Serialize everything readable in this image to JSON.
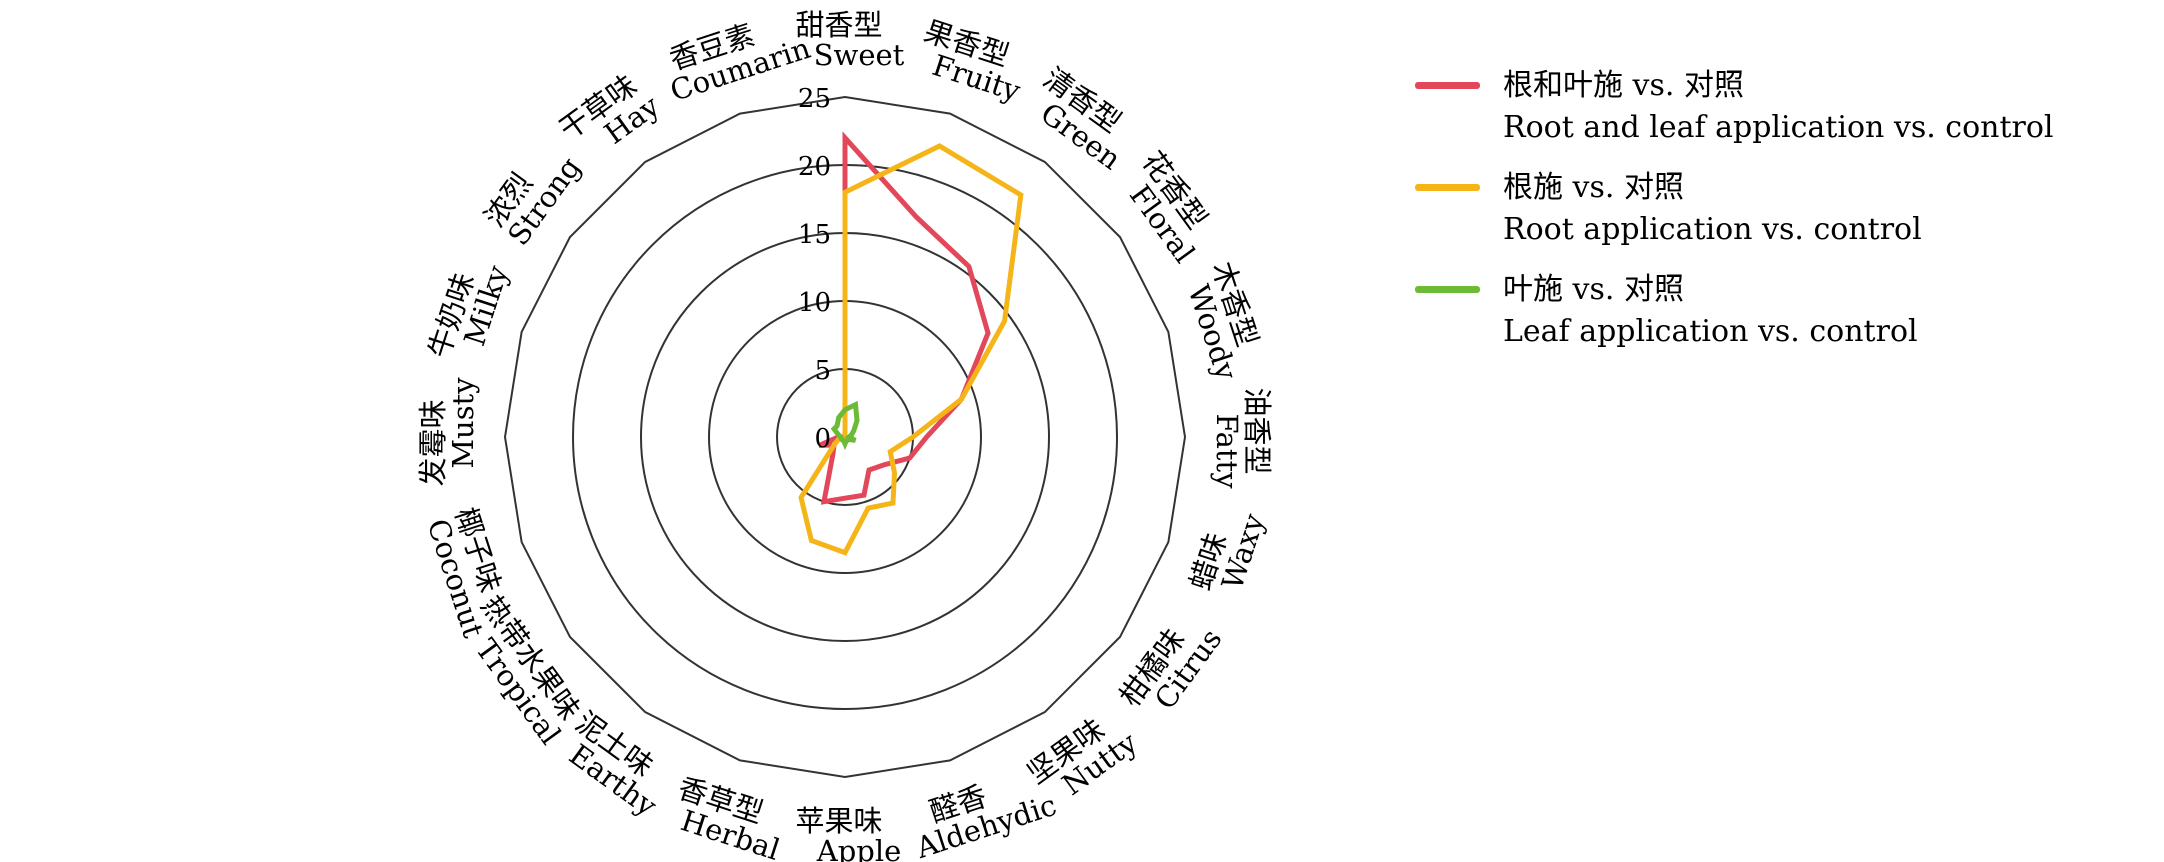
{
  "chart_data": {
    "type": "radar",
    "title": "",
    "categories": [
      {
        "cn": "甜香型",
        "en": "Sweet"
      },
      {
        "cn": "果香型",
        "en": "Fruity"
      },
      {
        "cn": "清香型",
        "en": "Green"
      },
      {
        "cn": "花香型",
        "en": "Floral"
      },
      {
        "cn": "木香型",
        "en": "Woody"
      },
      {
        "cn": "油香型",
        "en": "Fatty"
      },
      {
        "cn": "蜡味",
        "en": "Waxy"
      },
      {
        "cn": "柑橘味",
        "en": "Citrus"
      },
      {
        "cn": "坚果味",
        "en": "Nutty"
      },
      {
        "cn": "醛香",
        "en": "Aldehydic"
      },
      {
        "cn": "苹果味",
        "en": "Apple"
      },
      {
        "cn": "香草型",
        "en": "Herbal"
      },
      {
        "cn": "泥土味",
        "en": "Earthy"
      },
      {
        "cn": "热带水果味",
        "en": "Tropical"
      },
      {
        "cn": "椰子味",
        "en": "Coconut"
      },
      {
        "cn": "发霉味",
        "en": "Musty"
      },
      {
        "cn": "牛奶味",
        "en": "Milky"
      },
      {
        "cn": "浓烈",
        "en": "Strong"
      },
      {
        "cn": "干草味",
        "en": "Hay"
      },
      {
        "cn": "香豆素",
        "en": "Coumarin"
      }
    ],
    "radial_ticks": [
      "0",
      "5",
      "10",
      "15",
      "20",
      "25"
    ],
    "rlim": [
      0,
      25
    ],
    "grid": true,
    "legend_position": "right",
    "series": [
      {
        "name_cn": "根和叶施  vs. 对照",
        "name_en": "Root and leaf application vs. control",
        "color": "#e2485a",
        "values": [
          22,
          17,
          15.5,
          13,
          9,
          6,
          5,
          3.5,
          3,
          4.5,
          4.5,
          5,
          1.5,
          1,
          2,
          0.5,
          0,
          0,
          0,
          0
        ]
      },
      {
        "name_cn": "根施  vs. 对照",
        "name_en": "Root application vs. control",
        "color": "#f5b518",
        "values": [
          18,
          22.5,
          22,
          14.5,
          9,
          5,
          3.5,
          4.5,
          6,
          5.5,
          8.5,
          8,
          5.5,
          1,
          0.5,
          0,
          0,
          0,
          0,
          0
        ]
      },
      {
        "name_cn": "叶施  vs. 对照",
        "name_en": "Leaf application vs. control",
        "color": "#6bbb37",
        "values": [
          2,
          2.5,
          1.5,
          0.8,
          0.5,
          0.3,
          0.8,
          0.3,
          0.3,
          0.3,
          0.5,
          0.3,
          0.3,
          0.3,
          0.3,
          0.3,
          0.5,
          1,
          1,
          1.5
        ]
      }
    ]
  }
}
